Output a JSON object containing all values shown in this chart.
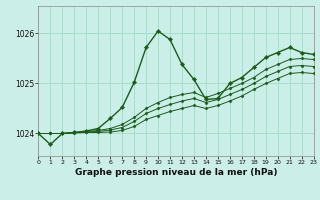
{
  "bg_color": "#cceee8",
  "grid_color": "#aaddcc",
  "line_color": "#1a5c1a",
  "marker_color": "#1a5c1a",
  "title": "Graphe pression niveau de la mer (hPa)",
  "xlim": [
    0,
    23
  ],
  "ylim": [
    1023.55,
    1026.55
  ],
  "yticks": [
    1024,
    1025,
    1026
  ],
  "xticks": [
    0,
    1,
    2,
    3,
    4,
    5,
    6,
    7,
    8,
    9,
    10,
    11,
    12,
    13,
    14,
    15,
    16,
    17,
    18,
    19,
    20,
    21,
    22,
    23
  ],
  "series": [
    [
      1024.0,
      1023.78,
      1024.0,
      1024.02,
      1024.05,
      1024.1,
      1024.3,
      1024.52,
      1025.02,
      1025.72,
      1026.05,
      1025.88,
      1025.38,
      1025.08,
      1024.68,
      1024.7,
      1025.0,
      1025.12,
      1025.32,
      1025.52,
      1025.62,
      1025.72,
      1025.62,
      1025.58
    ],
    [
      1024.0,
      1024.0,
      1024.0,
      1024.02,
      1024.04,
      1024.06,
      1024.1,
      1024.18,
      1024.32,
      1024.5,
      1024.62,
      1024.72,
      1024.78,
      1024.82,
      1024.72,
      1024.8,
      1024.9,
      1025.0,
      1025.12,
      1025.28,
      1025.38,
      1025.48,
      1025.5,
      1025.48
    ],
    [
      1024.0,
      1024.0,
      1024.0,
      1024.02,
      1024.03,
      1024.04,
      1024.07,
      1024.12,
      1024.24,
      1024.4,
      1024.5,
      1024.58,
      1024.65,
      1024.7,
      1024.62,
      1024.68,
      1024.78,
      1024.88,
      1025.0,
      1025.14,
      1025.24,
      1025.34,
      1025.36,
      1025.34
    ],
    [
      1024.0,
      1024.0,
      1024.0,
      1024.01,
      1024.02,
      1024.02,
      1024.03,
      1024.06,
      1024.14,
      1024.28,
      1024.36,
      1024.44,
      1024.5,
      1024.56,
      1024.5,
      1024.56,
      1024.65,
      1024.75,
      1024.88,
      1025.0,
      1025.1,
      1025.2,
      1025.22,
      1025.2
    ]
  ]
}
